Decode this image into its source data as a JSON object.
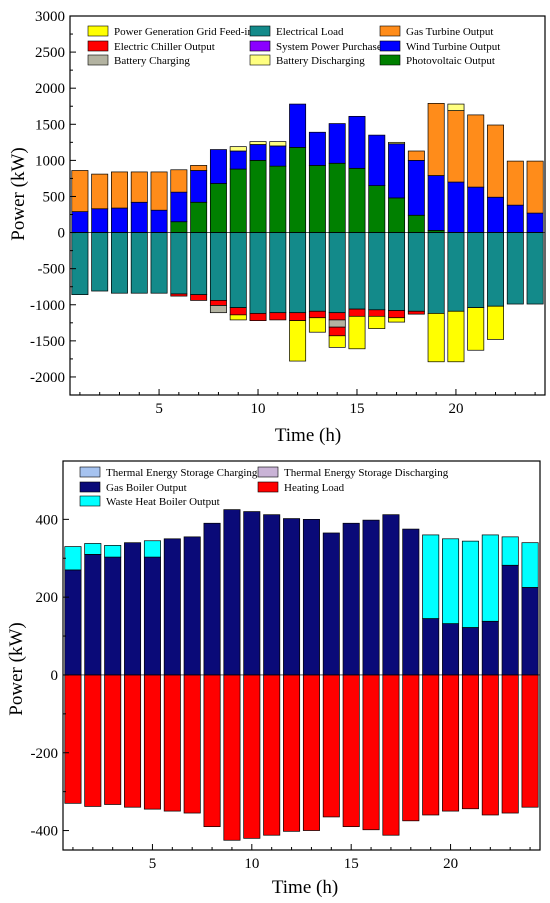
{
  "chart_data": [
    {
      "type": "bar",
      "stacked": true,
      "title": "",
      "xlabel": "Time (h)",
      "ylabel": "Power (kW)",
      "ylim": [
        -2250,
        3000
      ],
      "xlim": [
        0.5,
        24.5
      ],
      "xticks": [
        5,
        10,
        15,
        20
      ],
      "yticks": [
        -2000,
        -1500,
        -1000,
        -500,
        0,
        500,
        1000,
        1500,
        2000,
        2500,
        3000
      ],
      "legend_position": "top",
      "x": [
        1,
        2,
        3,
        4,
        5,
        6,
        7,
        8,
        9,
        10,
        11,
        12,
        13,
        14,
        15,
        16,
        17,
        18,
        19,
        20,
        21,
        22,
        23,
        24
      ],
      "series": [
        {
          "name": "Photovoltaic Output",
          "color": "#008000",
          "values": [
            0,
            0,
            0,
            0,
            0,
            150,
            420,
            680,
            880,
            1000,
            920,
            1180,
            930,
            960,
            890,
            650,
            480,
            240,
            30,
            0,
            0,
            0,
            0,
            0
          ]
        },
        {
          "name": "Battery Discharging",
          "color": "#ffff80",
          "values": [
            0,
            0,
            0,
            0,
            0,
            0,
            0,
            0,
            0,
            0,
            0,
            0,
            0,
            0,
            0,
            0,
            0,
            0,
            0,
            0,
            0,
            0,
            0,
            0
          ]
        },
        {
          "name": "Wind Turbine Output",
          "color": "#0000ff",
          "values": [
            290,
            330,
            340,
            420,
            310,
            410,
            440,
            470,
            250,
            220,
            280,
            600,
            460,
            550,
            720,
            700,
            750,
            760,
            760,
            700,
            630,
            490,
            380,
            270
          ]
        },
        {
          "name": "Gas Turbine Output",
          "color": "#ff8c1a",
          "values": [
            570,
            480,
            500,
            420,
            530,
            310,
            70,
            0,
            0,
            0,
            0,
            0,
            0,
            0,
            0,
            0,
            0,
            130,
            1000,
            990,
            1000,
            1000,
            610,
            720
          ]
        },
        {
          "name": "Battery Discharging",
          "color": "#ffff80",
          "values": [
            0,
            0,
            0,
            0,
            0,
            0,
            0,
            0,
            60,
            40,
            60,
            0,
            0,
            0,
            0,
            0,
            20,
            0,
            0,
            90,
            0,
            0,
            0,
            0
          ]
        },
        {
          "name": "System Power Purchase",
          "color": "#8b00ff",
          "values": [
            0,
            0,
            0,
            0,
            0,
            0,
            0,
            0,
            0,
            0,
            0,
            0,
            0,
            0,
            0,
            0,
            0,
            0,
            0,
            0,
            0,
            0,
            0,
            0
          ]
        },
        {
          "name": "Electrical Load",
          "color": "#138a8a",
          "values": [
            -860,
            -810,
            -840,
            -840,
            -840,
            -850,
            -860,
            -940,
            -1040,
            -1120,
            -1110,
            -1110,
            -1090,
            -1110,
            -1060,
            -1070,
            -1080,
            -1090,
            -1120,
            -1090,
            -1040,
            -1020,
            -990,
            -990
          ]
        },
        {
          "name": "Electric Chiller Output",
          "color": "#ff0000",
          "values": [
            0,
            0,
            0,
            0,
            0,
            -30,
            -80,
            -70,
            -100,
            -100,
            -100,
            -110,
            -90,
            -100,
            -100,
            -90,
            -100,
            -40,
            0,
            0,
            0,
            0,
            0,
            0
          ]
        },
        {
          "name": "Battery Charging",
          "color": "#b3b3a1",
          "values": [
            0,
            0,
            0,
            0,
            0,
            0,
            0,
            -100,
            0,
            0,
            0,
            0,
            0,
            -100,
            0,
            0,
            0,
            0,
            0,
            0,
            0,
            0,
            0,
            0
          ]
        },
        {
          "name": "Electric Chiller Output",
          "color": "#ff0000",
          "values": [
            0,
            0,
            0,
            0,
            0,
            0,
            0,
            0,
            0,
            0,
            0,
            0,
            0,
            -120,
            0,
            0,
            0,
            0,
            0,
            0,
            0,
            0,
            0,
            0
          ]
        },
        {
          "name": "Power Generation Grid Feed-in",
          "color": "#ffff00",
          "values": [
            0,
            0,
            0,
            0,
            0,
            0,
            0,
            0,
            -70,
            0,
            0,
            -560,
            -200,
            -160,
            -450,
            -170,
            -60,
            0,
            -670,
            -700,
            -590,
            -460,
            0,
            0
          ]
        }
      ],
      "legend": [
        {
          "label": "Power Generation Grid Feed-in",
          "color": "#ffff00"
        },
        {
          "label": "Electrical Load",
          "color": "#138a8a"
        },
        {
          "label": "Gas Turbine Output",
          "color": "#ff8c1a"
        },
        {
          "label": "Electric Chiller Output",
          "color": "#ff0000"
        },
        {
          "label": "System Power Purchase",
          "color": "#8b00ff"
        },
        {
          "label": "Wind Turbine Output",
          "color": "#0000ff"
        },
        {
          "label": "Battery Charging",
          "color": "#b3b3a1"
        },
        {
          "label": "Battery Discharging",
          "color": "#ffff80"
        },
        {
          "label": "Photovoltaic Output",
          "color": "#008000"
        }
      ]
    },
    {
      "type": "bar",
      "stacked": true,
      "title": "",
      "xlabel": "Time (h)",
      "ylabel": "Power (kW)",
      "ylim": [
        -450,
        550
      ],
      "xlim": [
        0.5,
        24.5
      ],
      "xticks": [
        5,
        10,
        15,
        20
      ],
      "yticks": [
        -400,
        -200,
        0,
        200,
        400
      ],
      "legend_position": "top",
      "x": [
        1,
        2,
        3,
        4,
        5,
        6,
        7,
        8,
        9,
        10,
        11,
        12,
        13,
        14,
        15,
        16,
        17,
        18,
        19,
        20,
        21,
        22,
        23,
        24
      ],
      "series": [
        {
          "name": "Gas Boiler Output",
          "color": "#0a0a78",
          "values": [
            270,
            310,
            303,
            340,
            303,
            350,
            355,
            390,
            425,
            420,
            412,
            402,
            400,
            365,
            390,
            398,
            412,
            375,
            145,
            132,
            122,
            138,
            282,
            225
          ]
        },
        {
          "name": "Waste Heat Boiler Output",
          "color": "#00ffff",
          "values": [
            60,
            28,
            30,
            0,
            42,
            0,
            0,
            0,
            0,
            0,
            0,
            0,
            0,
            0,
            0,
            0,
            0,
            0,
            215,
            218,
            222,
            222,
            73,
            115
          ]
        },
        {
          "name": "Heating Load",
          "color": "#ff0000",
          "values": [
            -330,
            -338,
            -333,
            -340,
            -345,
            -350,
            -355,
            -390,
            -425,
            -420,
            -412,
            -402,
            -400,
            -365,
            -390,
            -398,
            -412,
            -375,
            -360,
            -350,
            -344,
            -360,
            -355,
            -340
          ]
        },
        {
          "name": "Thermal Energy Storage Charging",
          "color": "#a6c3f0",
          "values": [
            0,
            0,
            0,
            0,
            0,
            0,
            0,
            0,
            0,
            0,
            0,
            0,
            0,
            0,
            0,
            0,
            0,
            0,
            0,
            0,
            0,
            0,
            0,
            0
          ]
        },
        {
          "name": "Thermal Energy Storage Discharging",
          "color": "#c9b3d6",
          "values": [
            0,
            0,
            0,
            0,
            0,
            0,
            0,
            0,
            0,
            0,
            0,
            0,
            0,
            0,
            0,
            0,
            0,
            0,
            0,
            0,
            0,
            0,
            0,
            0
          ]
        }
      ],
      "legend": [
        {
          "label": "Thermal Energy Storage Charging",
          "color": "#a6c3f0"
        },
        {
          "label": "Thermal Energy Storage Discharging",
          "color": "#c9b3d6"
        },
        {
          "label": "Gas Boiler Output",
          "color": "#0a0a78"
        },
        {
          "label": "Heating Load",
          "color": "#ff0000"
        },
        {
          "label": "Waste Heat Boiler Output",
          "color": "#00ffff"
        }
      ]
    }
  ]
}
